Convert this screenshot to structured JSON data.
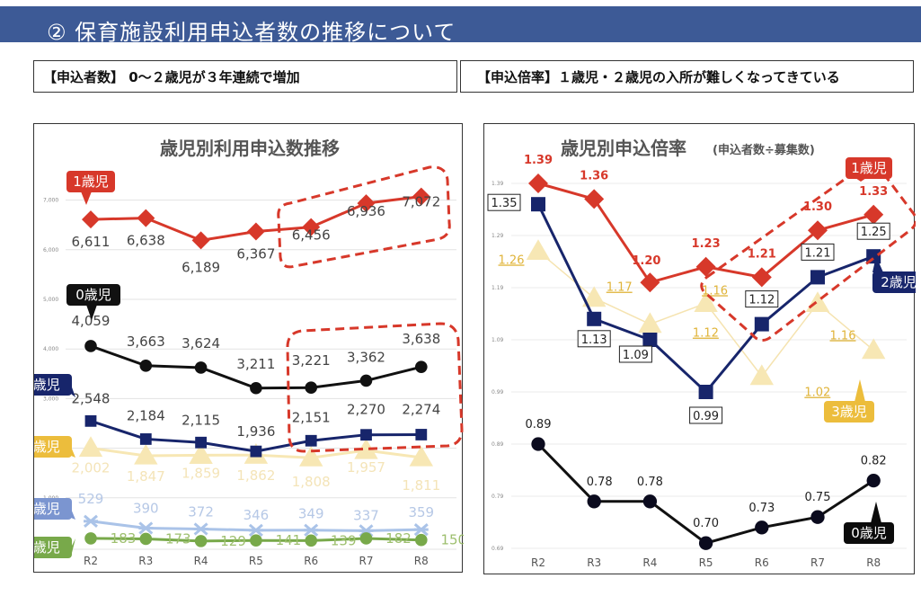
{
  "header": {
    "title": "② 保育施設利用申込者数の推移について",
    "band_color": "#3d5a96"
  },
  "summary": {
    "left": "【申込者数】 0～２歳児が３年連続で増加",
    "right": "【申込倍率】１歳児・２歳児の入所が難しくなってきている"
  },
  "chart_data": [
    {
      "type": "line",
      "title": "歳児別利用申込数推移",
      "categories": [
        "R2",
        "R3",
        "R4",
        "R5",
        "R6",
        "R7",
        "R8"
      ],
      "yticks": [
        "1,000",
        "2,000",
        "3,000",
        "4,000",
        "5,000",
        "6,000",
        "7,000"
      ],
      "ylim": [
        0,
        7700
      ],
      "grid": true,
      "series": [
        {
          "name": "1歳児",
          "color": "#d7382a",
          "marker": "diamond",
          "values": [
            6611,
            6638,
            6189,
            6367,
            6456,
            6936,
            7072
          ],
          "labels": [
            "6,611",
            "6,638",
            "6,189",
            "6,367",
            "6,456",
            "6,936",
            "7,072"
          ]
        },
        {
          "name": "0歳児",
          "color": "#111111",
          "marker": "circle",
          "values": [
            4059,
            3663,
            3624,
            3211,
            3221,
            3362,
            3638
          ],
          "labels": [
            "4,059",
            "3,663",
            "3,624",
            "3,211",
            "3,221",
            "3,362",
            "3,638"
          ]
        },
        {
          "name": "2歳児",
          "color": "#17256b",
          "marker": "square",
          "values": [
            2548,
            2184,
            2115,
            1936,
            2151,
            2270,
            2274
          ],
          "labels": [
            "2,548",
            "2,184",
            "2,115",
            "1,936",
            "2,151",
            "2,270",
            "2,274"
          ]
        },
        {
          "name": "3歳児",
          "color": "#f7e7b4",
          "tag_color": "#ecbd3c",
          "marker": "triangle",
          "values": [
            2002,
            1847,
            1859,
            1862,
            1808,
            1957,
            1811
          ],
          "labels": [
            "2,002",
            "1,847",
            "1,859",
            "1,862",
            "1,808",
            "1,957",
            "1,811"
          ]
        },
        {
          "name": "4歳児",
          "color": "#aac3e8",
          "tag_color": "#7b95d0",
          "marker": "asterisk",
          "values": [
            529,
            390,
            372,
            346,
            349,
            337,
            359
          ],
          "labels": [
            "529",
            "390",
            "372",
            "346",
            "349",
            "337",
            "359"
          ]
        },
        {
          "name": "5歳児",
          "color": "#78a94a",
          "marker": "circle",
          "values": [
            183,
            173,
            129,
            141,
            139,
            182,
            150
          ],
          "labels": [
            "183",
            "173",
            "129",
            "141",
            "139",
            "182",
            "150"
          ]
        }
      ],
      "annotations": [
        "dashed highlight R6–R8 (1歳児)",
        "dashed highlight R6–R8 (0歳児・2歳児)"
      ]
    },
    {
      "type": "line",
      "title": "歳児別申込倍率",
      "subtitle": "(申込者数÷募集数)",
      "categories": [
        "R2",
        "R3",
        "R4",
        "R5",
        "R6",
        "R7",
        "R8"
      ],
      "yticks": [
        "0.69",
        "0.79",
        "0.89",
        "0.99",
        "1.09",
        "1.19",
        "1.29",
        "1.39"
      ],
      "ylim": [
        0.69,
        1.39
      ],
      "grid": true,
      "series": [
        {
          "name": "1歳児",
          "color": "#d7382a",
          "marker": "diamond",
          "values": [
            1.39,
            1.36,
            1.2,
            1.23,
            1.21,
            1.3,
            1.33
          ],
          "labels": [
            "1.39",
            "1.36",
            "1.20",
            "1.23",
            "1.21",
            "1.30",
            "1.33"
          ]
        },
        {
          "name": "2歳児",
          "color": "#17256b",
          "marker": "square",
          "values": [
            1.35,
            1.13,
            1.09,
            0.99,
            1.12,
            1.21,
            1.25
          ],
          "labels": [
            "1.35",
            "1.13",
            "1.09",
            "0.99",
            "1.12",
            "1.21",
            "1.25"
          ]
        },
        {
          "name": "3歳児",
          "color": "#f7e7b4",
          "tag_color": "#ecbd3c",
          "label_color": "#e0b43a",
          "marker": "triangle",
          "values": [
            1.26,
            1.17,
            1.12,
            1.16,
            1.02,
            1.16,
            1.07
          ],
          "labels": [
            "1.26",
            "1.17",
            "1.12",
            "1.16",
            "1.02",
            "1.16",
            "1.07"
          ]
        },
        {
          "name": "0歳児",
          "color": "#111111",
          "marker": "circle",
          "values": [
            0.89,
            0.78,
            0.78,
            0.7,
            0.73,
            0.75,
            0.82
          ],
          "labels": [
            "0.89",
            "0.78",
            "0.78",
            "0.70",
            "0.73",
            "0.75",
            "0.82"
          ]
        }
      ],
      "annotations": [
        "dashed highlight R5–R8 (1歳児・2歳児)"
      ]
    }
  ]
}
